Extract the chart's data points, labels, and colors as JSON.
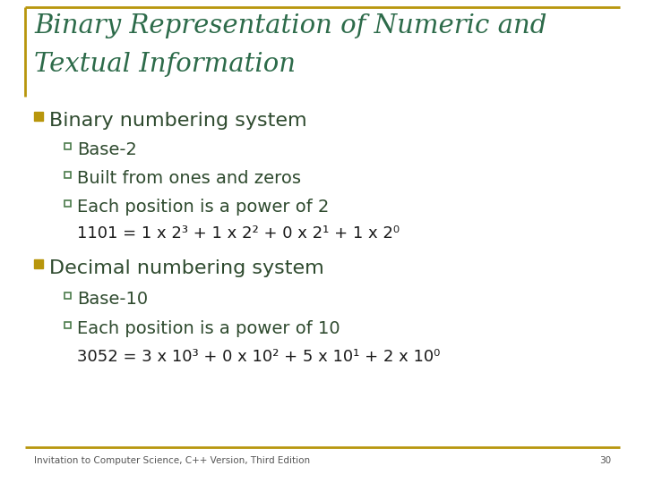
{
  "title_line1": "Binary Representation of Numeric and",
  "title_line2": "Textual Information",
  "title_color": "#2d6b4a",
  "background_color": "#ffffff",
  "border_color": "#b8960c",
  "bullet_color": "#b8960c",
  "text_color": "#1a1a1a",
  "body_text_color": "#2e4a2e",
  "sub_bullet_color": "#4a7a4a",
  "footer_text": "Invitation to Computer Science, C++ Version, Third Edition",
  "footer_page": "30",
  "bullet1_main": "Binary numbering system",
  "bullet1_subs": [
    "Base-2",
    "Built from ones and zeros",
    "Each position is a power of 2"
  ],
  "bullet2_main": "Decimal numbering system",
  "bullet2_subs": [
    "Base-10",
    "Each position is a power of 10"
  ]
}
